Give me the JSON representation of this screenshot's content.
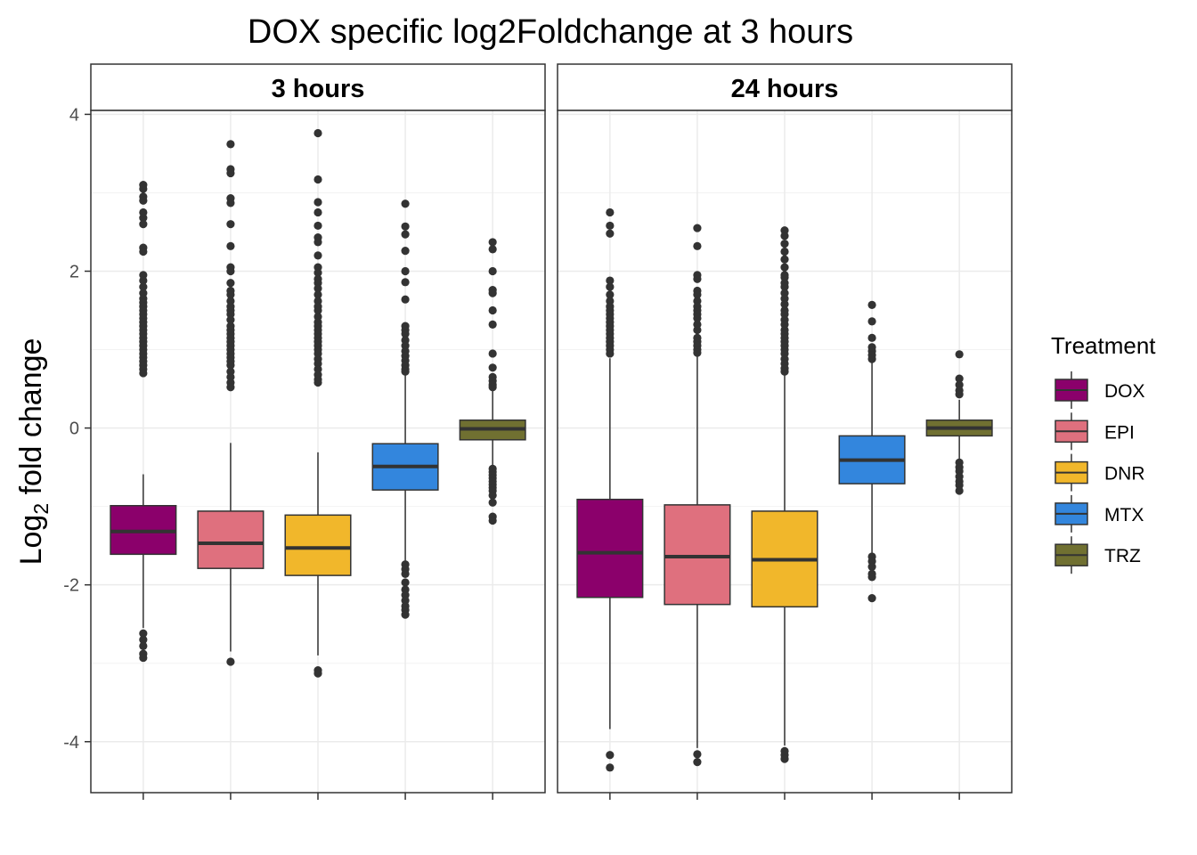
{
  "chart_data": {
    "type": "box",
    "title": "DOX specific log2Foldchange at 3 hours",
    "ylabel": "Log2 fold change",
    "ylabel_base": "Log",
    "ylabel_sub": "2",
    "ylabel_rest": " fold change",
    "ylim": [
      -4.65,
      4.05
    ],
    "yticks": [
      -4,
      -2,
      0,
      2,
      4
    ],
    "ytick_labels": [
      "-4",
      "-2",
      "0",
      "2",
      "4"
    ],
    "grid": true,
    "categories": [
      "DOX",
      "EPI",
      "DNR",
      "MTX",
      "TRZ"
    ],
    "legend": {
      "title": "Treatment",
      "placement": "right",
      "entries": [
        {
          "label": "DOX",
          "color": "#8B006B"
        },
        {
          "label": "EPI",
          "color": "#DF707E"
        },
        {
          "label": "DNR",
          "color": "#F1B72B"
        },
        {
          "label": "MTX",
          "color": "#3386DD"
        },
        {
          "label": "TRZ",
          "color": "#707031"
        }
      ]
    },
    "panels": [
      {
        "label": "3 hours",
        "boxes": [
          {
            "treatment": "DOX",
            "q1": -1.61,
            "median": -1.32,
            "q3": -0.99,
            "lower_whisker": -2.55,
            "upper_whisker": -0.59,
            "outliers": [
              3.1,
              3.05,
              2.95,
              2.9,
              2.75,
              2.68,
              2.6,
              2.3,
              2.25,
              1.95,
              1.88,
              1.8,
              1.72,
              1.65,
              1.6,
              1.55,
              1.5,
              1.45,
              1.4,
              1.35,
              1.3,
              1.25,
              1.2,
              1.15,
              1.1,
              1.05,
              1.0,
              0.95,
              0.9,
              0.85,
              0.8,
              0.75,
              0.7,
              -2.62,
              -2.7,
              -2.78,
              -2.88,
              -2.93
            ]
          },
          {
            "treatment": "EPI",
            "q1": -1.79,
            "median": -1.47,
            "q3": -1.06,
            "lower_whisker": -2.85,
            "upper_whisker": -0.19,
            "outliers": [
              3.62,
              3.3,
              3.25,
              2.93,
              2.87,
              2.6,
              2.32,
              2.05,
              2.0,
              1.85,
              1.75,
              1.7,
              1.62,
              1.55,
              1.5,
              1.45,
              1.38,
              1.3,
              1.25,
              1.2,
              1.15,
              1.1,
              1.05,
              1.0,
              0.95,
              0.9,
              0.85,
              0.8,
              0.72,
              0.65,
              0.58,
              0.52,
              -2.98
            ]
          },
          {
            "treatment": "DNR",
            "q1": -1.88,
            "median": -1.53,
            "q3": -1.11,
            "lower_whisker": -2.9,
            "upper_whisker": -0.31,
            "outliers": [
              3.76,
              3.17,
              2.88,
              2.75,
              2.58,
              2.43,
              2.37,
              2.2,
              2.05,
              1.98,
              1.9,
              1.85,
              1.78,
              1.7,
              1.62,
              1.55,
              1.5,
              1.42,
              1.35,
              1.3,
              1.25,
              1.2,
              1.15,
              1.1,
              1.05,
              1.0,
              0.95,
              0.88,
              0.82,
              0.75,
              0.68,
              0.62,
              0.58,
              -3.09,
              -3.13
            ]
          },
          {
            "treatment": "MTX",
            "q1": -0.79,
            "median": -0.49,
            "q3": -0.2,
            "lower_whisker": -1.69,
            "upper_whisker": 0.68,
            "outliers": [
              2.86,
              2.57,
              2.47,
              2.26,
              2.0,
              1.86,
              1.64,
              1.3,
              1.25,
              1.2,
              1.12,
              1.05,
              0.98,
              0.92,
              0.86,
              0.8,
              0.75,
              0.72,
              -1.74,
              -1.8,
              -1.86,
              -1.97,
              -2.06,
              -2.13,
              -2.2,
              -2.27,
              -2.32,
              -2.38
            ]
          },
          {
            "treatment": "TRZ",
            "q1": -0.15,
            "median": -0.01,
            "q3": 0.1,
            "lower_whisker": -0.49,
            "upper_whisker": 0.48,
            "outliers": [
              2.37,
              2.28,
              2.0,
              1.76,
              1.72,
              1.5,
              1.32,
              0.95,
              0.77,
              0.65,
              0.6,
              0.55,
              0.52,
              -0.52,
              -0.56,
              -0.6,
              -0.64,
              -0.68,
              -0.72,
              -0.76,
              -0.8,
              -0.86,
              -0.95,
              -1.13,
              -1.18
            ]
          }
        ]
      },
      {
        "label": "24 hours",
        "boxes": [
          {
            "treatment": "DOX",
            "q1": -2.16,
            "median": -1.59,
            "q3": -0.91,
            "lower_whisker": -3.84,
            "upper_whisker": 0.89,
            "outliers": [
              2.75,
              2.58,
              2.48,
              1.88,
              1.8,
              1.7,
              1.62,
              1.55,
              1.5,
              1.45,
              1.4,
              1.35,
              1.3,
              1.25,
              1.2,
              1.15,
              1.1,
              1.05,
              1.0,
              0.95,
              -4.17,
              -4.33
            ]
          },
          {
            "treatment": "EPI",
            "q1": -2.25,
            "median": -1.64,
            "q3": -0.98,
            "lower_whisker": -4.08,
            "upper_whisker": 0.93,
            "outliers": [
              2.55,
              2.32,
              1.95,
              1.9,
              1.75,
              1.7,
              1.62,
              1.55,
              1.5,
              1.45,
              1.4,
              1.32,
              1.25,
              1.15,
              1.1,
              1.05,
              1.0,
              0.96,
              -4.16,
              -4.26
            ]
          },
          {
            "treatment": "DNR",
            "q1": -2.28,
            "median": -1.68,
            "q3": -1.06,
            "lower_whisker": -4.05,
            "upper_whisker": 0.69,
            "outliers": [
              2.52,
              2.45,
              2.35,
              2.25,
              2.15,
              2.05,
              1.95,
              1.92,
              1.85,
              1.8,
              1.72,
              1.65,
              1.58,
              1.5,
              1.45,
              1.38,
              1.32,
              1.25,
              1.2,
              1.15,
              1.1,
              1.05,
              1.0,
              0.95,
              0.88,
              0.82,
              0.76,
              0.72,
              -4.12,
              -4.17,
              -4.22
            ]
          },
          {
            "treatment": "MTX",
            "q1": -0.71,
            "median": -0.41,
            "q3": -0.1,
            "lower_whisker": -1.6,
            "upper_whisker": 0.83,
            "outliers": [
              1.57,
              1.36,
              1.15,
              1.03,
              0.98,
              0.93,
              0.88,
              -1.64,
              -1.7,
              -1.77,
              -1.86,
              -1.9,
              -2.17
            ]
          },
          {
            "treatment": "TRZ",
            "q1": -0.1,
            "median": 0.0,
            "q3": 0.1,
            "lower_whisker": -0.4,
            "upper_whisker": 0.36,
            "outliers": [
              0.94,
              0.63,
              0.55,
              0.48,
              0.43,
              -0.44,
              -0.5,
              -0.55,
              -0.62,
              -0.68,
              -0.73,
              -0.8
            ]
          }
        ]
      }
    ]
  }
}
